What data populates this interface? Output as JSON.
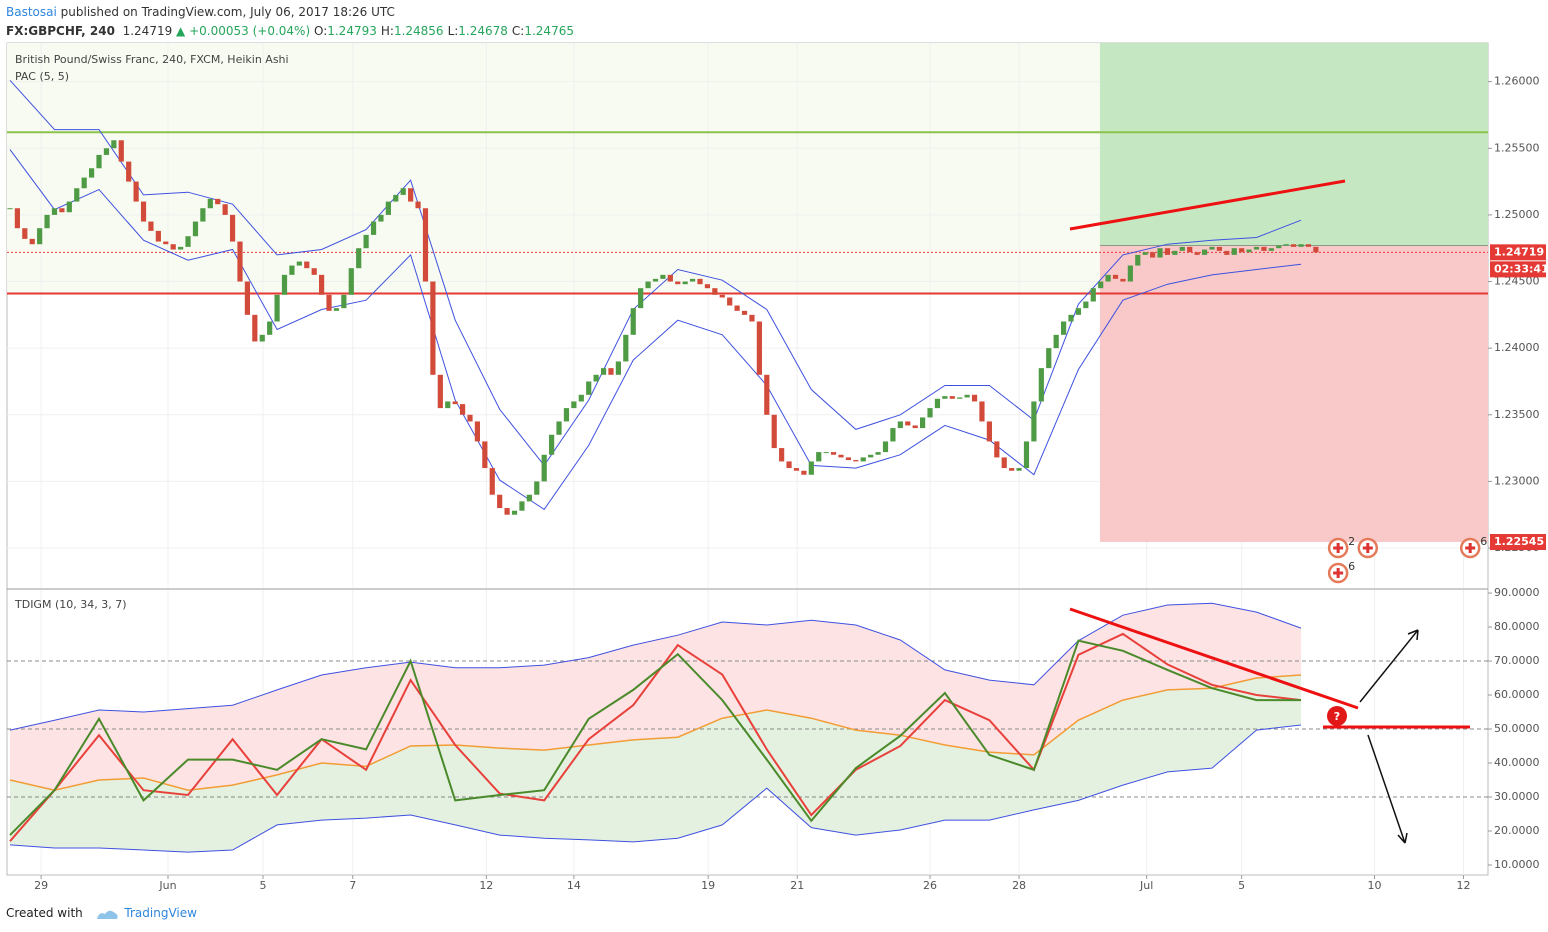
{
  "header": {
    "author": "Bastosai",
    "published": "published on TradingView.com, July 06, 2017 18:26 UTC",
    "symbol": "FX:GBPCHF, 240",
    "last": "1.24719",
    "change": "▲ +0.00053 (+0.04%)",
    "ohlc": [
      {
        "label": "O:",
        "value": "1.24793"
      },
      {
        "label": "H:",
        "value": "1.24856"
      },
      {
        "label": "L:",
        "value": "1.24678"
      },
      {
        "label": "C:",
        "value": "1.24765"
      }
    ]
  },
  "footer": {
    "created": "Created with",
    "brand": "TradingView"
  },
  "chart_data": [
    {
      "type": "candlestick",
      "title": "British Pound/Swiss Franc, 240, FXCM, Heikin Ashi",
      "indicator": "PAC (5, 5)",
      "xlim": [
        -0.4,
        199.2
      ],
      "xticks": [
        {
          "value": 4.2,
          "label": "29"
        },
        {
          "value": 21.3,
          "label": "Jun"
        },
        {
          "value": 34.1,
          "label": "5"
        },
        {
          "value": 46.2,
          "label": "7"
        },
        {
          "value": 64.2,
          "label": "12"
        },
        {
          "value": 76,
          "label": "14"
        },
        {
          "value": 94.1,
          "label": "19"
        },
        {
          "value": 106.1,
          "label": "21"
        },
        {
          "value": 124,
          "label": "26"
        },
        {
          "value": 136,
          "label": "28"
        },
        {
          "value": 153.2,
          "label": "Jul"
        },
        {
          "value": 166,
          "label": "5"
        },
        {
          "value": 183.9,
          "label": "10"
        },
        {
          "value": 195.9,
          "label": "12"
        }
      ],
      "ylim": [
        1.222,
        1.2629
      ],
      "yticks": [
        {
          "value": 1.225,
          "label": "1.22500"
        },
        {
          "value": 1.23,
          "label": "1.23000"
        },
        {
          "value": 1.235,
          "label": "1.23500"
        },
        {
          "value": 1.24,
          "label": "1.24000"
        },
        {
          "value": 1.245,
          "label": "1.24500"
        },
        {
          "value": 1.25,
          "label": "1.25000"
        },
        {
          "value": 1.255,
          "label": "1.25500"
        },
        {
          "value": 1.26,
          "label": "1.26000"
        }
      ],
      "grid": true,
      "up_color": "#4f9a45",
      "down_color": "#d24b3a",
      "values": [
        1.2505,
        1.249,
        1.2482,
        1.2478,
        1.249,
        1.25,
        1.2505,
        1.2502,
        1.251,
        1.252,
        1.2528,
        1.2535,
        1.2545,
        1.255,
        1.2556,
        1.254,
        1.2525,
        1.251,
        1.2495,
        1.2488,
        1.248,
        1.2478,
        1.2474,
        1.2476,
        1.2484,
        1.2495,
        1.2505,
        1.2512,
        1.2508,
        1.25,
        1.248,
        1.245,
        1.2425,
        1.2405,
        1.241,
        1.242,
        1.244,
        1.2455,
        1.2462,
        1.2465,
        1.246,
        1.2455,
        1.244,
        1.2428,
        1.243,
        1.244,
        1.246,
        1.2475,
        1.2485,
        1.2495,
        1.25,
        1.251,
        1.2515,
        1.252,
        1.251,
        1.2505,
        1.245,
        1.238,
        1.2355,
        1.236,
        1.2358,
        1.235,
        1.2345,
        1.233,
        1.231,
        1.229,
        1.228,
        1.2275,
        1.2278,
        1.2285,
        1.229,
        1.23,
        1.232,
        1.2335,
        1.2345,
        1.2355,
        1.236,
        1.2365,
        1.2375,
        1.238,
        1.2385,
        1.238,
        1.239,
        1.241,
        1.243,
        1.2445,
        1.245,
        1.2452,
        1.2455,
        1.245,
        1.2448,
        1.245,
        1.2452,
        1.2448,
        1.2445,
        1.244,
        1.2438,
        1.2432,
        1.2428,
        1.2425,
        1.242,
        1.238,
        1.235,
        1.2325,
        1.2315,
        1.231,
        1.2308,
        1.2305,
        1.2315,
        1.2322,
        1.2322,
        1.232,
        1.2318,
        1.2316,
        1.2315,
        1.2318,
        1.232,
        1.2322,
        1.233,
        1.234,
        1.2345,
        1.2342,
        1.234,
        1.2348,
        1.2355,
        1.2362,
        1.2364,
        1.2362,
        1.2363,
        1.2365,
        1.236,
        1.2345,
        1.233,
        1.2318,
        1.231,
        1.2308,
        1.231,
        1.233,
        1.236,
        1.2385,
        1.24,
        1.241,
        1.242,
        1.2425,
        1.243,
        1.2435,
        1.2445,
        1.245,
        1.2455,
        1.2452,
        1.245,
        1.2462,
        1.247,
        1.2472,
        1.2468,
        1.2475,
        1.247,
        1.2473,
        1.2476,
        1.2472,
        1.247,
        1.2474,
        1.2476,
        1.2473,
        1.247,
        1.2475,
        1.2472,
        1.2474,
        1.2476,
        1.2473,
        1.2475,
        1.2477,
        1.2478,
        1.2476,
        1.2478,
        1.2476,
        1.24719
      ],
      "bands": {
        "color": "#3f51e0",
        "x": [
          0,
          6,
          12,
          18,
          24,
          30,
          36,
          42,
          48,
          54,
          60,
          66,
          72,
          78,
          84,
          90,
          96,
          102,
          108,
          114,
          120,
          126,
          132,
          138,
          144,
          150,
          156,
          162,
          168,
          174
        ],
        "upper": [
          1.2601,
          1.2564,
          1.2564,
          1.2515,
          1.2517,
          1.2508,
          1.247,
          1.2474,
          1.2489,
          1.2526,
          1.2421,
          1.2354,
          1.2312,
          1.2361,
          1.2429,
          1.2459,
          1.2451,
          1.2429,
          1.2369,
          1.2339,
          1.235,
          1.2372,
          1.2372,
          1.2346,
          1.2433,
          1.247,
          1.2478,
          1.2481,
          1.2483,
          1.2496
        ],
        "lower": [
          1.2549,
          1.2504,
          1.2519,
          1.2481,
          1.2466,
          1.2474,
          1.2414,
          1.2429,
          1.2436,
          1.247,
          1.2361,
          1.2301,
          1.2279,
          1.2327,
          1.2391,
          1.2421,
          1.241,
          1.2372,
          1.2312,
          1.231,
          1.232,
          1.2342,
          1.2331,
          1.2305,
          1.2384,
          1.2436,
          1.2448,
          1.2455,
          1.2459,
          1.2463
        ]
      },
      "levels": [
        {
          "value": 1.2562,
          "color": "#8bc34a"
        },
        {
          "value": 1.2441,
          "color": "#e53935"
        }
      ],
      "last_price": 1.24719,
      "countdown": "02:33:41",
      "position": {
        "start": 146.9,
        "entry": 1.2477,
        "target": 1.264,
        "stop": 1.22545
      },
      "events": [
        {
          "x": 179,
          "count": 2
        },
        {
          "x": 179,
          "count": 6
        },
        {
          "x": 183,
          "count": null
        },
        {
          "x": 196.8,
          "count": 6
        }
      ]
    },
    {
      "type": "line",
      "title": "TDIGM (10, 34, 3, 7)",
      "annotation": "?",
      "ylim": [
        7.06,
        90.9
      ],
      "yticks": [
        {
          "value": 10,
          "label": "10.0000"
        },
        {
          "value": 20,
          "label": "20.0000"
        },
        {
          "value": 30,
          "label": "30.0000"
        },
        {
          "value": 40,
          "label": "40.0000"
        },
        {
          "value": 50,
          "label": "50.0000"
        },
        {
          "value": 60,
          "label": "60.0000"
        },
        {
          "value": 70,
          "label": "70.0000"
        },
        {
          "value": 80,
          "label": "80.0000"
        },
        {
          "value": 90,
          "label": "90.0000"
        }
      ],
      "levels": [
        70,
        50,
        30
      ],
      "x": [
        0,
        6,
        12,
        18,
        24,
        30,
        36,
        42,
        48,
        54,
        60,
        66,
        72,
        78,
        84,
        90,
        96,
        102,
        108,
        114,
        120,
        126,
        132,
        138,
        144,
        150,
        156,
        162,
        168,
        174
      ],
      "upper": {
        "color": "#3f51e0",
        "fill": "#fde3e3",
        "values": [
          49.7,
          52.6,
          55.6,
          55,
          56,
          57,
          61.5,
          65.9,
          68,
          69.7,
          68,
          68,
          68.8,
          71,
          74.7,
          77.6,
          81.5,
          80.6,
          82,
          80.6,
          76.2,
          67.4,
          64.4,
          63,
          76,
          83.5,
          86.5,
          87,
          84.4,
          79.7
        ]
      },
      "signal": {
        "color": "#f39c35",
        "values": [
          35,
          32,
          35,
          35.6,
          32,
          33.5,
          36.5,
          40,
          39,
          45,
          45.3,
          44.4,
          43.8,
          45.3,
          46.8,
          47.6,
          53.2,
          55.6,
          53.2,
          49.7,
          48.2,
          45.3,
          43.2,
          42.4,
          52.6,
          58.5,
          61.5,
          62,
          65,
          65.9
        ]
      },
      "lower": {
        "color": "#3f51e0",
        "fill": "#e4f1e0",
        "values": [
          15.9,
          15,
          15,
          14.4,
          13.8,
          14.4,
          21.8,
          23.2,
          23.8,
          24.7,
          21.8,
          18.8,
          17.9,
          17.4,
          16.8,
          17.9,
          21.8,
          32.6,
          21,
          18.8,
          20.3,
          23.2,
          23.2,
          26.2,
          29,
          33.5,
          37.4,
          38.5,
          49.7,
          51.2
        ]
      },
      "series": [
        {
          "color": "#e8413c",
          "values": [
            17,
            32,
            48.2,
            32,
            30.6,
            47,
            30.6,
            47,
            38,
            64.4,
            45.3,
            31,
            29,
            47,
            57,
            74.7,
            66,
            44,
            24.7,
            38,
            45,
            58.5,
            52.6,
            38,
            71.8,
            78,
            69,
            63,
            60,
            58.5
          ]
        },
        {
          "color": "#4a8a2a",
          "values": [
            18.8,
            32,
            53,
            29,
            41,
            41,
            38,
            47,
            44,
            70,
            29,
            30.6,
            32,
            53,
            61.5,
            72,
            58.5,
            41,
            23,
            38.5,
            48,
            60.6,
            42.4,
            38,
            76,
            73,
            67.4,
            62,
            58.5,
            58.5
          ]
        }
      ]
    }
  ]
}
